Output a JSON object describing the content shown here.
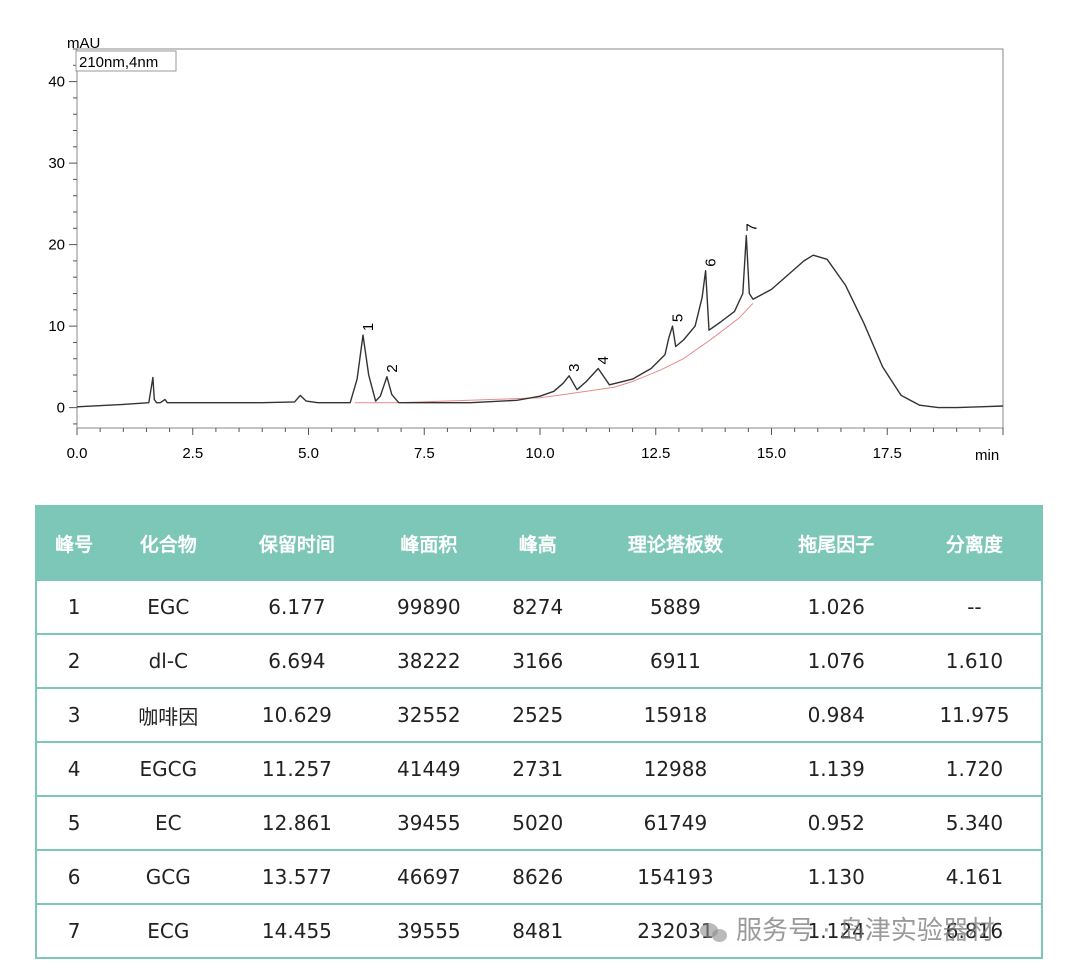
{
  "chart_data": {
    "type": "line",
    "ylabel": "mAU",
    "xlabel": "min",
    "channel_label": "210nm,4nm",
    "xlim": [
      0,
      20
    ],
    "ylim": [
      -2.5,
      44
    ],
    "x_ticks": [
      0,
      2.5,
      5,
      7.5,
      10,
      12.5,
      15,
      17.5
    ],
    "x_tick_labels": [
      "0.0",
      "2.5",
      "5.0",
      "7.5",
      "10.0",
      "12.5",
      "15.0",
      "17.5"
    ],
    "y_ticks": [
      0,
      10,
      20,
      30,
      40
    ],
    "y_tick_labels": [
      "0",
      "10",
      "20",
      "30",
      "40"
    ],
    "grid": false,
    "line_color": "#333333",
    "baseline_color": "#e88a8a",
    "trace": {
      "x": [
        0.0,
        1.0,
        1.55,
        1.64,
        1.67,
        1.72,
        1.8,
        1.9,
        1.95,
        2.0,
        2.2,
        3.0,
        4.0,
        4.7,
        4.82,
        4.95,
        5.2,
        5.9,
        6.05,
        6.177,
        6.3,
        6.45,
        6.55,
        6.694,
        6.8,
        6.95,
        7.5,
        8.5,
        9.5,
        10.0,
        10.3,
        10.5,
        10.629,
        10.8,
        11.0,
        11.257,
        11.5,
        12.0,
        12.4,
        12.7,
        12.78,
        12.861,
        12.93,
        13.1,
        13.35,
        13.5,
        13.577,
        13.65,
        13.9,
        14.2,
        14.38,
        14.455,
        14.52,
        14.6,
        15.0,
        15.4,
        15.7,
        15.9,
        16.2,
        16.6,
        17.0,
        17.4,
        17.8,
        18.2,
        18.6,
        19.0,
        19.5,
        20.0
      ],
      "y": [
        0.1,
        0.4,
        0.6,
        3.7,
        1.0,
        0.6,
        0.6,
        1.0,
        0.6,
        0.6,
        0.6,
        0.6,
        0.6,
        0.7,
        1.5,
        0.8,
        0.6,
        0.6,
        3.5,
        8.9,
        4.0,
        0.8,
        1.4,
        3.8,
        1.6,
        0.6,
        0.6,
        0.6,
        0.9,
        1.4,
        2.0,
        3.0,
        3.9,
        2.2,
        3.2,
        4.8,
        2.8,
        3.5,
        4.8,
        6.5,
        8.5,
        10.0,
        7.5,
        8.3,
        10.0,
        13.5,
        16.8,
        9.5,
        10.5,
        11.8,
        14.0,
        21.1,
        14.0,
        13.3,
        14.5,
        16.5,
        18.0,
        18.7,
        18.2,
        15.0,
        10.3,
        5.0,
        1.5,
        0.3,
        0.0,
        0.0,
        0.1,
        0.2
      ]
    },
    "baseline": {
      "x": [
        6.0,
        6.9,
        10.0,
        10.5,
        11.6,
        12.0,
        12.6,
        13.1,
        13.4,
        13.7,
        14.3,
        14.6
      ],
      "y": [
        0.6,
        0.6,
        1.2,
        1.6,
        2.5,
        3.2,
        4.6,
        6.0,
        7.2,
        8.4,
        11.0,
        12.8
      ]
    },
    "peaks": [
      {
        "label": "1",
        "x": 6.177,
        "y": 8.9
      },
      {
        "label": "2",
        "x": 6.694,
        "y": 3.8
      },
      {
        "label": "3",
        "x": 10.629,
        "y": 3.9
      },
      {
        "label": "4",
        "x": 11.257,
        "y": 4.8
      },
      {
        "label": "5",
        "x": 12.861,
        "y": 10.0
      },
      {
        "label": "6",
        "x": 13.577,
        "y": 16.8
      },
      {
        "label": "7",
        "x": 14.455,
        "y": 21.1
      }
    ]
  },
  "table": {
    "header_color": "#7cc7b8",
    "headers": [
      "峰号",
      "化合物",
      "保留时间",
      "峰面积",
      "峰高",
      "理论塔板数",
      "拖尾因子",
      "分离度"
    ],
    "rows": [
      [
        "1",
        "EGC",
        "6.177",
        "99890",
        "8274",
        "5889",
        "1.026",
        "--"
      ],
      [
        "2",
        "dl-C",
        "6.694",
        "38222",
        "3166",
        "6911",
        "1.076",
        "1.610"
      ],
      [
        "3",
        "咖啡因",
        "10.629",
        "32552",
        "2525",
        "15918",
        "0.984",
        "11.975"
      ],
      [
        "4",
        "EGCG",
        "11.257",
        "41449",
        "2731",
        "12988",
        "1.139",
        "1.720"
      ],
      [
        "5",
        "EC",
        "12.861",
        "39455",
        "5020",
        "61749",
        "0.952",
        "5.340"
      ],
      [
        "6",
        "GCG",
        "13.577",
        "46697",
        "8626",
        "154193",
        "1.130",
        "4.161"
      ],
      [
        "7",
        "ECG",
        "14.455",
        "39555",
        "8481",
        "232031",
        "1.124",
        "6.816"
      ]
    ]
  },
  "watermark": {
    "icon": "wechat-icon",
    "text": "服务号 · 岛津实验器材"
  }
}
